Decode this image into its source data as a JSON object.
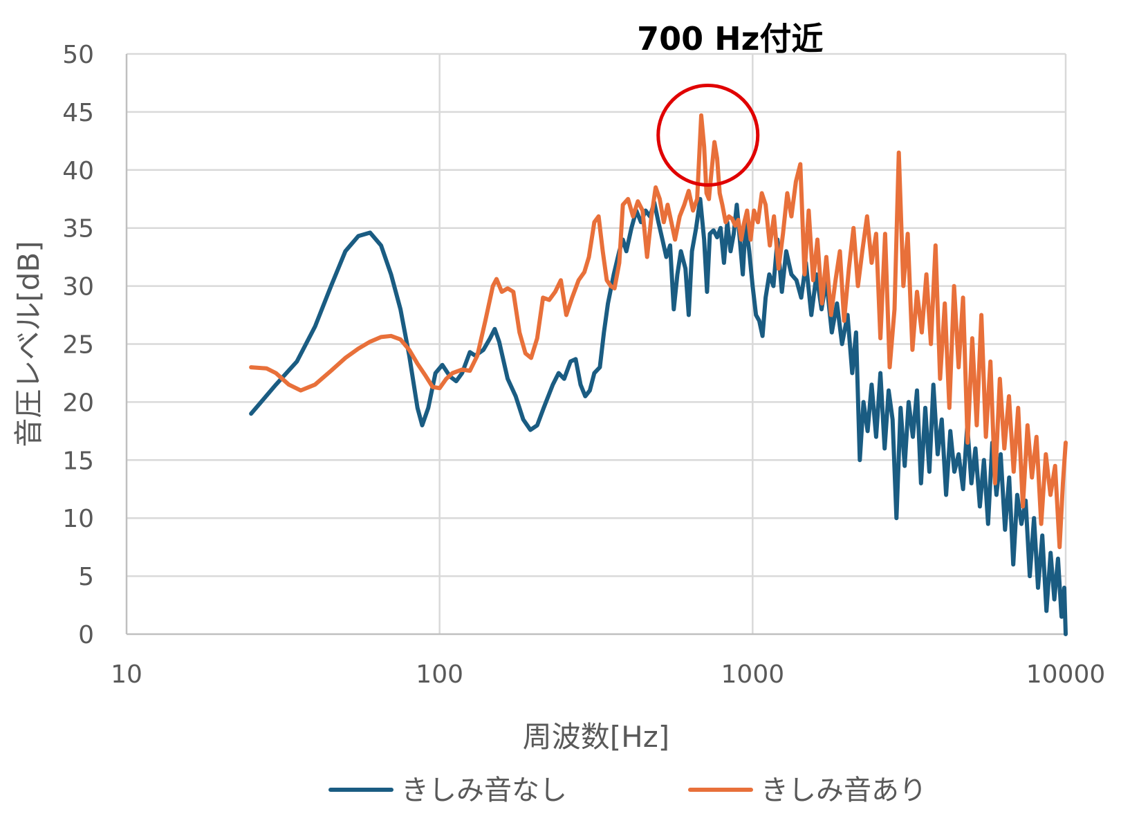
{
  "chart_data": {
    "type": "line",
    "xscale": "log",
    "xlim": [
      10,
      10000
    ],
    "ylim": [
      0,
      50
    ],
    "xticks": [
      10,
      100,
      1000,
      10000
    ],
    "xtick_labels": [
      "10",
      "100",
      "1000",
      "10000"
    ],
    "yticks": [
      0,
      5,
      10,
      15,
      20,
      25,
      30,
      35,
      40,
      45,
      50
    ],
    "ytick_labels": [
      "0",
      "5",
      "10",
      "15",
      "20",
      "25",
      "30",
      "35",
      "40",
      "45",
      "50"
    ],
    "xlabel": "周波数[Hz]",
    "ylabel": "音圧レベル[dB]",
    "grid": true,
    "legend_position": "bottom",
    "annotation": {
      "text": "700 Hz付近",
      "x": 720,
      "y": 43,
      "color": "#e00000"
    },
    "series": [
      {
        "name": "きしみ音なし",
        "color": "#1a5c82",
        "points": [
          [
            25,
            19
          ],
          [
            30,
            21.5
          ],
          [
            35,
            23.5
          ],
          [
            40,
            26.5
          ],
          [
            45,
            30
          ],
          [
            50,
            33
          ],
          [
            55,
            34.3
          ],
          [
            60,
            34.6
          ],
          [
            65,
            33.5
          ],
          [
            70,
            31
          ],
          [
            75,
            28
          ],
          [
            80,
            24
          ],
          [
            85,
            19.5
          ],
          [
            88,
            18
          ],
          [
            92,
            19.5
          ],
          [
            97,
            22.5
          ],
          [
            102,
            23.2
          ],
          [
            108,
            22.2
          ],
          [
            113,
            21.8
          ],
          [
            118,
            22.5
          ],
          [
            125,
            24.3
          ],
          [
            130,
            24
          ],
          [
            138,
            24.5
          ],
          [
            145,
            25.5
          ],
          [
            150,
            26.3
          ],
          [
            155,
            25.2
          ],
          [
            165,
            22
          ],
          [
            175,
            20.5
          ],
          [
            185,
            18.5
          ],
          [
            195,
            17.6
          ],
          [
            205,
            18
          ],
          [
            215,
            19.5
          ],
          [
            230,
            21.5
          ],
          [
            240,
            22.5
          ],
          [
            250,
            22
          ],
          [
            262,
            23.5
          ],
          [
            272,
            23.7
          ],
          [
            282,
            21.5
          ],
          [
            292,
            20.5
          ],
          [
            302,
            21
          ],
          [
            312,
            22.5
          ],
          [
            325,
            23
          ],
          [
            335,
            26
          ],
          [
            345,
            28.5
          ],
          [
            360,
            31
          ],
          [
            375,
            33
          ],
          [
            385,
            34
          ],
          [
            395,
            33
          ],
          [
            410,
            35
          ],
          [
            425,
            36.5
          ],
          [
            440,
            35.5
          ],
          [
            455,
            36.5
          ],
          [
            470,
            36
          ],
          [
            485,
            37.2
          ],
          [
            500,
            35.5
          ],
          [
            515,
            34
          ],
          [
            530,
            32.5
          ],
          [
            545,
            33.5
          ],
          [
            560,
            28
          ],
          [
            575,
            31
          ],
          [
            590,
            33
          ],
          [
            610,
            31.5
          ],
          [
            625,
            27.5
          ],
          [
            640,
            33
          ],
          [
            660,
            35
          ],
          [
            680,
            37.5
          ],
          [
            700,
            34
          ],
          [
            715,
            29.5
          ],
          [
            730,
            34.5
          ],
          [
            750,
            34.8
          ],
          [
            770,
            34.2
          ],
          [
            790,
            35
          ],
          [
            810,
            32
          ],
          [
            830,
            35.5
          ],
          [
            850,
            33
          ],
          [
            870,
            34.5
          ],
          [
            890,
            37
          ],
          [
            910,
            34
          ],
          [
            930,
            31
          ],
          [
            950,
            35.5
          ],
          [
            975,
            33
          ],
          [
            1000,
            30
          ],
          [
            1025,
            27.5
          ],
          [
            1050,
            27
          ],
          [
            1075,
            25.7
          ],
          [
            1100,
            29
          ],
          [
            1130,
            31
          ],
          [
            1165,
            30
          ],
          [
            1200,
            34
          ],
          [
            1240,
            29.5
          ],
          [
            1280,
            33
          ],
          [
            1330,
            31
          ],
          [
            1380,
            30.5
          ],
          [
            1430,
            29
          ],
          [
            1480,
            32
          ],
          [
            1540,
            27.5
          ],
          [
            1600,
            31
          ],
          [
            1660,
            28
          ],
          [
            1720,
            30.5
          ],
          [
            1790,
            26
          ],
          [
            1860,
            28.5
          ],
          [
            1930,
            25
          ],
          [
            2010,
            27.5
          ],
          [
            2080,
            22.5
          ],
          [
            2140,
            26
          ],
          [
            2200,
            15
          ],
          [
            2260,
            20
          ],
          [
            2330,
            17.5
          ],
          [
            2400,
            21.5
          ],
          [
            2480,
            17
          ],
          [
            2560,
            22.5
          ],
          [
            2640,
            16
          ],
          [
            2720,
            21
          ],
          [
            2800,
            18.5
          ],
          [
            2880,
            10
          ],
          [
            2970,
            19.5
          ],
          [
            3060,
            14.5
          ],
          [
            3150,
            20
          ],
          [
            3250,
            17
          ],
          [
            3350,
            21
          ],
          [
            3450,
            13
          ],
          [
            3560,
            19.5
          ],
          [
            3670,
            14
          ],
          [
            3780,
            21.5
          ],
          [
            3900,
            15.5
          ],
          [
            4020,
            18.5
          ],
          [
            4150,
            12
          ],
          [
            4280,
            17.5
          ],
          [
            4410,
            14
          ],
          [
            4550,
            15.5
          ],
          [
            4700,
            12.5
          ],
          [
            4850,
            18
          ],
          [
            5000,
            13
          ],
          [
            5150,
            16
          ],
          [
            5320,
            11
          ],
          [
            5480,
            15
          ],
          [
            5650,
            9.5
          ],
          [
            5830,
            16.5
          ],
          [
            6010,
            12
          ],
          [
            6200,
            15.5
          ],
          [
            6400,
            9
          ],
          [
            6600,
            13.5
          ],
          [
            6800,
            6
          ],
          [
            7000,
            12
          ],
          [
            7220,
            9.5
          ],
          [
            7450,
            11.5
          ],
          [
            7680,
            5
          ],
          [
            7920,
            10
          ],
          [
            8160,
            4
          ],
          [
            8420,
            8.5
          ],
          [
            8680,
            2
          ],
          [
            8950,
            7
          ],
          [
            9200,
            3
          ],
          [
            9450,
            6.5
          ],
          [
            9700,
            1.5
          ],
          [
            9900,
            4
          ],
          [
            10000,
            0
          ]
        ]
      },
      {
        "name": "きしみ音あり",
        "color": "#e8703a",
        "points": [
          [
            25,
            23
          ],
          [
            28,
            22.9
          ],
          [
            30,
            22.5
          ],
          [
            33,
            21.5
          ],
          [
            36,
            21
          ],
          [
            40,
            21.5
          ],
          [
            45,
            22.7
          ],
          [
            50,
            23.8
          ],
          [
            55,
            24.6
          ],
          [
            60,
            25.2
          ],
          [
            65,
            25.6
          ],
          [
            70,
            25.7
          ],
          [
            75,
            25.4
          ],
          [
            80,
            24.5
          ],
          [
            85,
            23.3
          ],
          [
            90,
            22.3
          ],
          [
            95,
            21.3
          ],
          [
            100,
            21.2
          ],
          [
            105,
            22
          ],
          [
            110,
            22.5
          ],
          [
            118,
            22.8
          ],
          [
            125,
            22.7
          ],
          [
            132,
            24
          ],
          [
            140,
            27
          ],
          [
            148,
            30
          ],
          [
            152,
            30.6
          ],
          [
            158,
            29.5
          ],
          [
            165,
            29.8
          ],
          [
            172,
            29.5
          ],
          [
            180,
            26
          ],
          [
            188,
            24.2
          ],
          [
            196,
            23.8
          ],
          [
            205,
            25.5
          ],
          [
            214,
            29
          ],
          [
            224,
            28.8
          ],
          [
            234,
            29.5
          ],
          [
            244,
            30.5
          ],
          [
            254,
            27.5
          ],
          [
            265,
            29
          ],
          [
            278,
            30.5
          ],
          [
            290,
            31.2
          ],
          [
            300,
            32.5
          ],
          [
            312,
            35.5
          ],
          [
            322,
            36
          ],
          [
            332,
            33
          ],
          [
            342,
            30.5
          ],
          [
            352,
            30
          ],
          [
            362,
            29.8
          ],
          [
            375,
            32
          ],
          [
            385,
            37
          ],
          [
            400,
            37.5
          ],
          [
            415,
            36
          ],
          [
            430,
            37.3
          ],
          [
            445,
            36.5
          ],
          [
            460,
            32.5
          ],
          [
            475,
            36
          ],
          [
            490,
            38.5
          ],
          [
            505,
            37.5
          ],
          [
            520,
            35.5
          ],
          [
            535,
            37
          ],
          [
            550,
            35.5
          ],
          [
            565,
            34
          ],
          [
            585,
            36
          ],
          [
            605,
            37
          ],
          [
            625,
            38.2
          ],
          [
            645,
            36.5
          ],
          [
            665,
            37.5
          ],
          [
            685,
            44.7
          ],
          [
            700,
            42
          ],
          [
            712,
            38
          ],
          [
            725,
            37.5
          ],
          [
            740,
            40
          ],
          [
            755,
            42.4
          ],
          [
            770,
            41
          ],
          [
            785,
            38
          ],
          [
            800,
            37
          ],
          [
            820,
            35.5
          ],
          [
            840,
            36
          ],
          [
            860,
            35.8
          ],
          [
            880,
            35.2
          ],
          [
            900,
            35.7
          ],
          [
            920,
            34
          ],
          [
            940,
            35.5
          ],
          [
            960,
            36.5
          ],
          [
            985,
            34
          ],
          [
            1010,
            36.5
          ],
          [
            1040,
            35.5
          ],
          [
            1070,
            38
          ],
          [
            1100,
            37
          ],
          [
            1135,
            33.5
          ],
          [
            1170,
            36
          ],
          [
            1210,
            31.5
          ],
          [
            1250,
            34.5
          ],
          [
            1290,
            38
          ],
          [
            1330,
            36
          ],
          [
            1375,
            39
          ],
          [
            1420,
            40.5
          ],
          [
            1465,
            31
          ],
          [
            1510,
            36.5
          ],
          [
            1560,
            30.5
          ],
          [
            1610,
            34
          ],
          [
            1665,
            28.5
          ],
          [
            1720,
            32.5
          ],
          [
            1780,
            27.5
          ],
          [
            1840,
            30.5
          ],
          [
            1900,
            33
          ],
          [
            1960,
            27
          ],
          [
            2030,
            31.5
          ],
          [
            2100,
            35
          ],
          [
            2170,
            30
          ],
          [
            2240,
            33
          ],
          [
            2320,
            36
          ],
          [
            2400,
            32
          ],
          [
            2480,
            34.5
          ],
          [
            2560,
            25.5
          ],
          [
            2650,
            34.5
          ],
          [
            2740,
            23
          ],
          [
            2840,
            28
          ],
          [
            2930,
            41.5
          ],
          [
            3030,
            30
          ],
          [
            3130,
            34.5
          ],
          [
            3240,
            24.5
          ],
          [
            3350,
            29.5
          ],
          [
            3470,
            26
          ],
          [
            3590,
            31
          ],
          [
            3710,
            25
          ],
          [
            3840,
            33.5
          ],
          [
            3970,
            22
          ],
          [
            4110,
            28.5
          ],
          [
            4250,
            19.5
          ],
          [
            4400,
            30
          ],
          [
            4550,
            23
          ],
          [
            4700,
            29
          ],
          [
            4860,
            16.5
          ],
          [
            5030,
            25.5
          ],
          [
            5200,
            18
          ],
          [
            5380,
            27.5
          ],
          [
            5560,
            17
          ],
          [
            5750,
            23.5
          ],
          [
            5950,
            13
          ],
          [
            6160,
            22
          ],
          [
            6370,
            16
          ],
          [
            6590,
            20.5
          ],
          [
            6820,
            14
          ],
          [
            7050,
            19.5
          ],
          [
            7300,
            11
          ],
          [
            7550,
            18
          ],
          [
            7800,
            13.5
          ],
          [
            8070,
            17
          ],
          [
            8350,
            9.5
          ],
          [
            8640,
            15.5
          ],
          [
            8940,
            12
          ],
          [
            9250,
            14.5
          ],
          [
            9560,
            7.5
          ],
          [
            9800,
            13
          ],
          [
            10000,
            16.5
          ]
        ]
      }
    ]
  }
}
